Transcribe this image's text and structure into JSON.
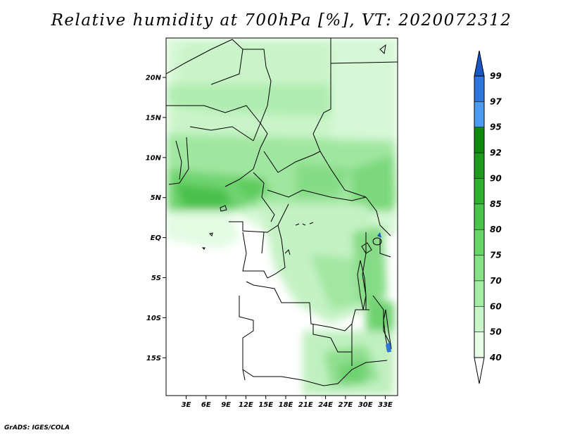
{
  "title": "Relative humidity at 700hPa [%], VT: 2020072312",
  "credit": "GrADS: IGES/COLA",
  "map": {
    "lat_labels": [
      "20N",
      "15N",
      "10N",
      "5N",
      "EQ",
      "5S",
      "10S",
      "15S"
    ],
    "lon_labels": [
      "3E",
      "6E",
      "9E",
      "12E",
      "15E",
      "18E",
      "21E",
      "24E",
      "27E",
      "30E",
      "33E"
    ]
  },
  "colorbar": {
    "levels": [
      "40",
      "50",
      "60",
      "70",
      "75",
      "80",
      "85",
      "90",
      "92",
      "95",
      "97",
      "99"
    ],
    "colors": [
      "#ffffff",
      "#e6fde6",
      "#c9f6c9",
      "#a5eca5",
      "#87e187",
      "#67d567",
      "#4ac44a",
      "#2fb02f",
      "#1e9a1e",
      "#0e8a0e",
      "#4b9cf0",
      "#2f76dc",
      "#1a56c4"
    ]
  }
}
